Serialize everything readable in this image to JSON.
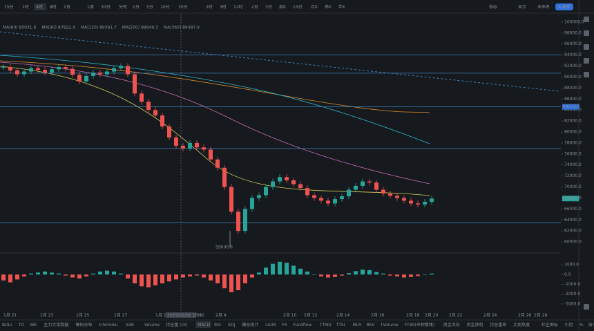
{
  "toolbar": {
    "intervals": [
      "15分",
      "1时",
      "4时",
      "8时",
      "1日",
      "1周",
      "30日",
      "分时",
      "1分",
      "5分",
      "10分",
      "30分",
      "2时",
      "3时",
      "12时",
      "2日",
      "3日",
      "周K",
      "15日",
      "月K",
      "季K",
      "年K"
    ],
    "right": [
      "指标",
      "显示",
      "未命名",
      "A 解锁"
    ]
  },
  "legend": {
    "ma": [
      "MA(60) 85931.6",
      "MA(90) 87822.4",
      "MA(120) 89361.7",
      "MA(200) 89949.3",
      "MA(360) 89487.9"
    ]
  },
  "chart_data": {
    "type": "candlestick",
    "ylim": [
      58000,
      102000
    ],
    "yticks": [
      {
        "value": 100000,
        "label": "100000.0"
      },
      {
        "value": 98000,
        "label": "98000.0"
      },
      {
        "value": 96000,
        "label": "96000.0"
      },
      {
        "value": 94000,
        "label": "94000.0"
      },
      {
        "value": 92000,
        "label": "92000.0"
      },
      {
        "value": 90000,
        "label": "90000.0"
      },
      {
        "value": 88000,
        "label": "88000.0"
      },
      {
        "value": 86000,
        "label": "86000.0"
      },
      {
        "value": 84000,
        "label": "84000.0"
      },
      {
        "value": 82000,
        "label": "82000.0"
      },
      {
        "value": 80000,
        "label": "80000.0"
      },
      {
        "value": 78000,
        "label": "78000.0"
      },
      {
        "value": 76000,
        "label": "76000.0"
      },
      {
        "value": 74000,
        "label": "74000.0"
      },
      {
        "value": 72000,
        "label": "72000.0"
      },
      {
        "value": 70000,
        "label": "70000.0"
      },
      {
        "value": 68000,
        "label": "68000.0"
      },
      {
        "value": 66000,
        "label": "66000.0"
      },
      {
        "value": 64000,
        "label": "64000.0"
      },
      {
        "value": 62000,
        "label": "62000.0"
      },
      {
        "value": 60000,
        "label": "60000.0"
      }
    ],
    "values": [
      91800,
      91200,
      90500,
      91000,
      91600,
      91300,
      90800,
      91400,
      91800,
      91500,
      90400,
      89200,
      90200,
      90800,
      90500,
      91000,
      91600,
      92000,
      90500,
      87000,
      85500,
      84000,
      83000,
      81000,
      79000,
      77500,
      77000,
      78000,
      77200,
      76800,
      75000,
      73500,
      70000,
      65500,
      62000,
      66000,
      68000,
      68500,
      70000,
      71000,
      71800,
      71200,
      70500,
      69800,
      68500,
      68000,
      67500,
      67000,
      67800,
      68300,
      69500,
      70200,
      71000,
      70800,
      69500,
      68800,
      68400,
      68000,
      67500,
      67000,
      66800,
      67300,
      67897.3
    ],
    "levels": [
      94000,
      90700,
      84572.9,
      77000,
      63500
    ],
    "level_label": {
      "value": 84572.9,
      "label": "84572.9"
    },
    "last_label": {
      "value": 67897.3,
      "label": "67897.3"
    },
    "low_label": {
      "value": 59000,
      "label": "59000.0"
    }
  },
  "macd": {
    "ylim": [
      -3500,
      1500
    ],
    "yticks": [
      {
        "value": 1000,
        "label": "1000.0"
      },
      {
        "value": 0,
        "label": "0.0"
      },
      {
        "value": -1000,
        "label": "-1000.0"
      },
      {
        "value": -2000,
        "label": "-2000.0"
      },
      {
        "value": -3000,
        "label": "-3000.0"
      }
    ],
    "values": [
      -600,
      -800,
      -500,
      -200,
      100,
      200,
      300,
      200,
      100,
      -100,
      -300,
      -400,
      -200,
      100,
      300,
      400,
      300,
      100,
      -400,
      -900,
      -1200,
      -1300,
      -1100,
      -900,
      -700,
      -500,
      -300,
      -200,
      -100,
      -300,
      -600,
      -900,
      -1400,
      -1800,
      -1600,
      -900,
      -300,
      200,
      700,
      1100,
      1300,
      1200,
      900,
      600,
      300,
      0,
      -200,
      -300,
      -250,
      -100,
      150,
      350,
      500,
      450,
      250,
      100,
      -100,
      -200,
      -300,
      -250,
      -150,
      0,
      100
    ]
  },
  "x_axis": [
    "1月 21",
    "1月 23",
    "1月 25",
    "1月 27",
    "1月 29",
    "1月 31",
    "2025/02/02 16:00",
    "2月 4",
    "2月 10",
    "2月 12",
    "2月 14",
    "2月 16",
    "2月 18",
    "2月 20",
    "2月 22",
    "2月 24",
    "2月 26",
    "2月 28"
  ],
  "indicators": [
    "BOLL",
    "TD",
    "SBI",
    "主力大单数据",
    "筹码分布",
    "Ichimoku",
    "SAR",
    "Volume",
    "持仓量 (OI)",
    "MACD",
    "RSI",
    "KDJ",
    "爆仓统计",
    "LSUR",
    "FR",
    "Fundflow",
    "TTMU",
    "TTSI",
    "MLR",
    "BSV",
    "TVolume",
    "FTBS(市种情绪)",
    "资金流向",
    "资金获利",
    "持仓量差",
    "买卖热度",
    "社区图标",
    "引用",
    "%",
    "自动"
  ]
}
